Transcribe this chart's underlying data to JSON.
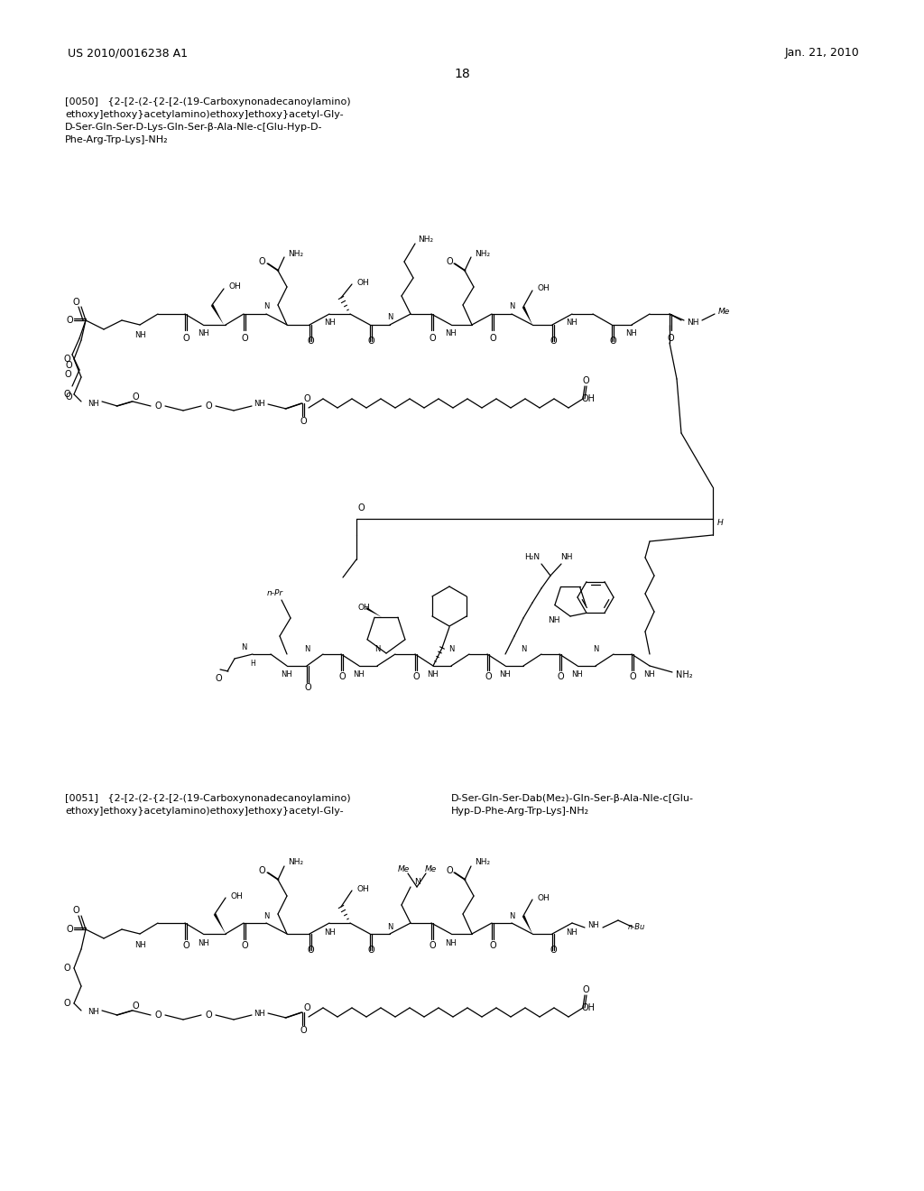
{
  "background_color": "#ffffff",
  "page_number": "18",
  "patent_number": "US 2010/0016238 A1",
  "patent_date": "Jan. 21, 2010",
  "para_0050": "[0050]   {2-[2-(2-{2-[2-(19-Carboxynonadecanoylamino)\nethoxy]ethoxy}acetylamino)ethoxy]ethoxy}acetyl-Gly-\nD-Ser-Gln-Ser-D-Lys-Gln-Ser-β-Ala-Nle-c[Glu-Hyp-D-\nPhe-Arg-Trp-Lys]-NH₂",
  "para_0051_l": "[0051]   {2-[2-(2-{2-[2-(19-Carboxynonadecanoylamino)\nethoxy]ethoxy}acetylamino)ethoxy]ethoxy}acetyl-Gly-",
  "para_0051_r": "D-Ser-Gln-Ser-Dab(Me₂)-Gln-Ser-β-Ala-Nle-c[Glu-\nHyp-D-Phe-Arg-Trp-Lys]-NH₂"
}
